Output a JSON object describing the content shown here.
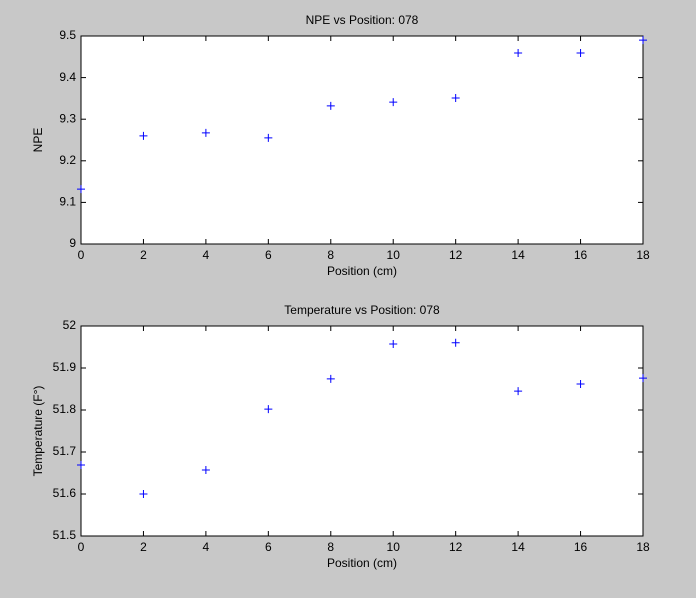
{
  "chart_data": [
    {
      "type": "scatter",
      "title": "NPE vs Position: 078",
      "x_label": "Position (cm)",
      "y_label": "NPE",
      "x": [
        0,
        2,
        4,
        6,
        8,
        10,
        12,
        14,
        16,
        18
      ],
      "values": [
        9.132,
        9.26,
        9.267,
        9.255,
        9.332,
        9.341,
        9.351,
        9.459,
        9.459,
        9.49
      ],
      "color": "#0000ff",
      "marker": "+",
      "xlim": [
        0,
        18
      ],
      "xticks": [
        0,
        2,
        4,
        6,
        8,
        10,
        12,
        14,
        16,
        18
      ],
      "ylim": [
        9,
        9.5
      ],
      "yticks": [
        9,
        9.1,
        9.2,
        9.3,
        9.4,
        9.5
      ],
      "grid": false
    },
    {
      "type": "scatter",
      "title": "Temperature vs Position: 078",
      "x_label": "Position (cm)",
      "y_label": "Temperature (F°)",
      "x": [
        0,
        2,
        4,
        6,
        8,
        10,
        12,
        14,
        16,
        18
      ],
      "values": [
        51.669,
        51.6,
        51.657,
        51.802,
        51.874,
        51.957,
        51.96,
        51.845,
        51.862,
        51.876
      ],
      "color": "#0000ff",
      "marker": "+",
      "xlim": [
        0,
        18
      ],
      "xticks": [
        0,
        2,
        4,
        6,
        8,
        10,
        12,
        14,
        16,
        18
      ],
      "ylim": [
        51.5,
        52
      ],
      "yticks": [
        51.5,
        51.6,
        51.7,
        51.8,
        51.9,
        52
      ],
      "grid": false
    }
  ]
}
